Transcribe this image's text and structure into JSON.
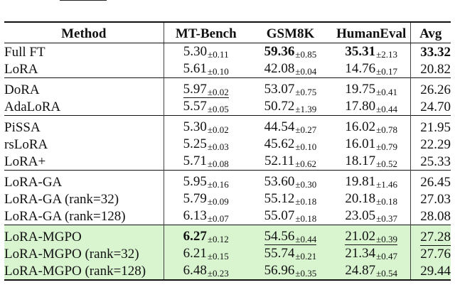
{
  "table": {
    "headers": {
      "method": "Method",
      "mt_bench": "MT-Bench",
      "gsm8k": "GSM8K",
      "humaneval": "HumanEval",
      "avg": "Avg"
    },
    "rows": [
      {
        "method": "Full FT",
        "mt": "5.30",
        "mt_std": "±0.11",
        "gsm": "59.36",
        "gsm_std": "±0.85",
        "he": "35.31",
        "he_std": "±2.13",
        "avg": "33.32"
      },
      {
        "method": "LoRA",
        "mt": "5.61",
        "mt_std": "±0.10",
        "gsm": "42.08",
        "gsm_std": "±0.04",
        "he": "14.76",
        "he_std": "±0.17",
        "avg": "20.82"
      },
      {
        "method": "DoRA",
        "mt": "5.97",
        "mt_std": "±0.02",
        "gsm": "53.07",
        "gsm_std": "±0.75",
        "he": "19.75",
        "he_std": "±0.41",
        "avg": "26.26"
      },
      {
        "method": "AdaLoRA",
        "mt": "5.57",
        "mt_std": "±0.05",
        "gsm": "50.72",
        "gsm_std": "±1.39",
        "he": "17.80",
        "he_std": "±0.44",
        "avg": "24.70"
      },
      {
        "method": "PiSSA",
        "mt": "5.30",
        "mt_std": "±0.02",
        "gsm": "44.54",
        "gsm_std": "±0.27",
        "he": "16.02",
        "he_std": "±0.78",
        "avg": "21.95"
      },
      {
        "method": "rsLoRA",
        "mt": "5.25",
        "mt_std": "±0.03",
        "gsm": "45.62",
        "gsm_std": "±0.10",
        "he": "16.01",
        "he_std": "±0.79",
        "avg": "22.29"
      },
      {
        "method": "LoRA+",
        "mt": "5.71",
        "mt_std": "±0.08",
        "gsm": "52.11",
        "gsm_std": "±0.62",
        "he": "18.17",
        "he_std": "±0.52",
        "avg": "25.33"
      },
      {
        "method": "LoRA-GA",
        "mt": "5.95",
        "mt_std": "±0.16",
        "gsm": "53.60",
        "gsm_std": "±0.30",
        "he": "19.81",
        "he_std": "±1.46",
        "avg": "26.45"
      },
      {
        "method": "LoRA-GA (rank=32)",
        "mt": "5.79",
        "mt_std": "±0.09",
        "gsm": "55.12",
        "gsm_std": "±0.18",
        "he": "20.18",
        "he_std": "±0.18",
        "avg": "27.03"
      },
      {
        "method": "LoRA-GA (rank=128)",
        "mt": "6.13",
        "mt_std": "±0.07",
        "gsm": "55.07",
        "gsm_std": "±0.18",
        "he": "23.05",
        "he_std": "±0.37",
        "avg": "28.08"
      },
      {
        "method": "LoRA-MGPO",
        "mt": "6.27",
        "mt_std": "±0.12",
        "gsm": "54.56",
        "gsm_std": "±0.44",
        "he": "21.02",
        "he_std": "±0.39",
        "avg": "27.28"
      },
      {
        "method": "LoRA-MGPO (rank=32)",
        "mt": "6.21",
        "mt_std": "±0.15",
        "gsm": "55.74",
        "gsm_std": "±0.21",
        "he": "21.34",
        "he_std": "±0.47",
        "avg": "27.76"
      },
      {
        "method": "LoRA-MGPO (rank=128)",
        "mt": "6.48",
        "mt_std": "±0.23",
        "gsm": "56.96",
        "gsm_std": "±0.35",
        "he": "24.87",
        "he_std": "±0.54",
        "avg": "29.44"
      }
    ]
  },
  "colors": {
    "highlight_bg": "#d9f5d0",
    "rule": "#111111"
  }
}
